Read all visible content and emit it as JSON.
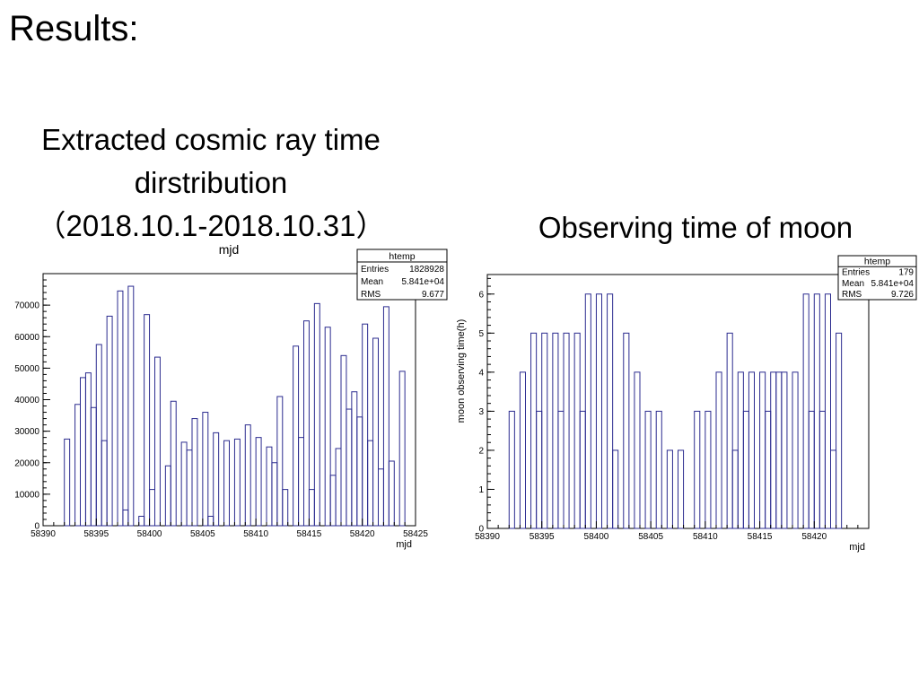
{
  "slide_title": "Results:",
  "left_caption": {
    "line1": "Extracted cosmic ray time",
    "line2": "dirstribution",
    "line3": "（2018.10.1-2018.10.31）"
  },
  "right_caption": "Observing time of moon",
  "colors": {
    "histogram_line": "#2b2b8f",
    "axis": "#000000",
    "frame": "#000000"
  },
  "chart_data": [
    {
      "type": "bar",
      "title": "mjd",
      "xlabel": "mjd",
      "ylabel": "",
      "xlim": [
        58390,
        58425
      ],
      "ylim": [
        0,
        80000
      ],
      "bin_width": 0.5,
      "x_ticks": [
        "58390",
        "58395",
        "58400",
        "58405",
        "58410",
        "58415",
        "58420",
        "58425"
      ],
      "y_ticks": [
        "0",
        "10000",
        "20000",
        "30000",
        "40000",
        "50000",
        "60000",
        "70000"
      ],
      "bins_start": 58392.0,
      "values": [
        27500,
        0,
        38500,
        47000,
        48500,
        37500,
        57500,
        27000,
        66500,
        0,
        74500,
        5000,
        76000,
        0,
        3000,
        67000,
        11500,
        53500,
        0,
        19000,
        39500,
        0,
        26500,
        24000,
        34000,
        0,
        36000,
        3000,
        29500,
        0,
        27000,
        0,
        27500,
        0,
        32000,
        0,
        28000,
        0,
        25000,
        20000,
        41000,
        11500,
        0,
        57000,
        28000,
        65000,
        11500,
        70500,
        0,
        63000,
        16000,
        24500,
        54000,
        37000,
        42500,
        34500,
        64000,
        27000,
        59500,
        18000,
        69500,
        20500,
        0,
        49000
      ],
      "stats_box": {
        "title": "htemp",
        "rows": [
          {
            "label": "Entries",
            "value": "1828928"
          },
          {
            "label": "Mean",
            "value": "5.841e+04"
          },
          {
            "label": "RMS",
            "value": "9.677"
          }
        ]
      }
    },
    {
      "type": "bar",
      "title": "",
      "xlabel": "mjd",
      "ylabel": "moon observing time(h)",
      "xlim": [
        58390,
        58425
      ],
      "ylim": [
        0,
        6.5
      ],
      "bin_width": 0.5,
      "x_ticks": [
        "58390",
        "58395",
        "58400",
        "58405",
        "58410",
        "58415",
        "58420"
      ],
      "y_ticks": [
        "0",
        "1",
        "2",
        "3",
        "4",
        "5",
        "6"
      ],
      "bins_start": 58392.0,
      "values": [
        3,
        0,
        4,
        0,
        5,
        3,
        5,
        0,
        5,
        3,
        5,
        0,
        5,
        3,
        6,
        0,
        6,
        0,
        6,
        2,
        0,
        5,
        0,
        4,
        0,
        3,
        0,
        3,
        0,
        2,
        0,
        2,
        0,
        0,
        3,
        0,
        3,
        0,
        4,
        0,
        5,
        2,
        4,
        3,
        4,
        0,
        4,
        3,
        4,
        4,
        4,
        0,
        4,
        0,
        6,
        3,
        6,
        3,
        6,
        2,
        5
      ],
      "stats_box": {
        "title": "htemp",
        "rows": [
          {
            "label": "Entries",
            "value": "179"
          },
          {
            "label": "Mean",
            "value": "5.841e+04"
          },
          {
            "label": "RMS",
            "value": "9.726"
          }
        ]
      }
    }
  ]
}
